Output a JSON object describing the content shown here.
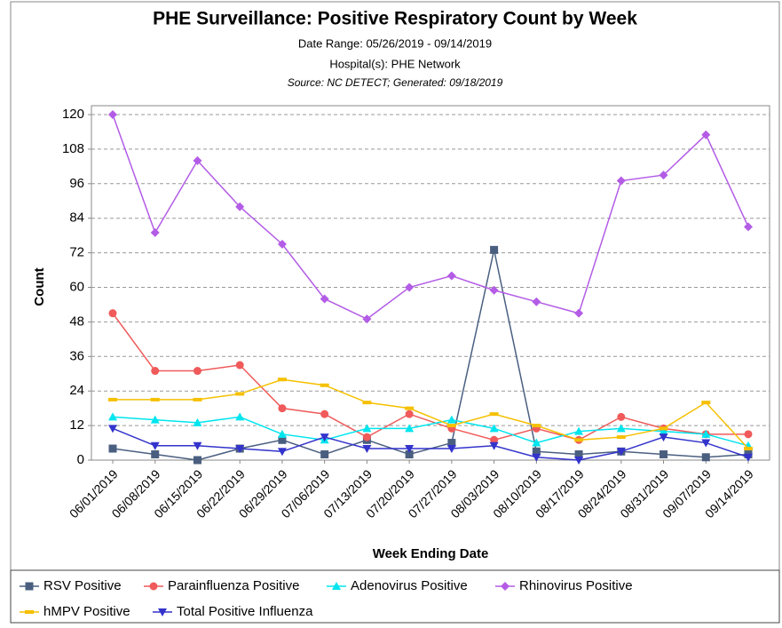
{
  "chart_data": {
    "type": "line",
    "title": "PHE Surveillance: Positive Respiratory Count by Week",
    "subtitle": "Date Range: 05/26/2019 - 09/14/2019",
    "subtitle2": "Hospital(s): PHE Network",
    "source": "Source: NC DETECT; Generated: 09/18/2019",
    "x_label": "Week Ending Date",
    "y_label": "Count",
    "categories": [
      "06/01/2019",
      "06/08/2019",
      "06/15/2019",
      "06/22/2019",
      "06/29/2019",
      "07/06/2019",
      "07/13/2019",
      "07/20/2019",
      "07/27/2019",
      "08/03/2019",
      "08/10/2019",
      "08/17/2019",
      "08/24/2019",
      "08/31/2019",
      "09/07/2019",
      "09/14/2019"
    ],
    "series": [
      {
        "name": "RSV Positive",
        "color": "#4a5f80",
        "marker": "square",
        "values": [
          4,
          2,
          0,
          4,
          7,
          2,
          7,
          2,
          6,
          73,
          3,
          2,
          3,
          2,
          1,
          2
        ]
      },
      {
        "name": "Parainfluenza Positive",
        "color": "#f05a5a",
        "marker": "circle",
        "values": [
          51,
          31,
          31,
          33,
          18,
          16,
          8,
          16,
          11,
          7,
          11,
          7,
          15,
          11,
          9,
          9
        ]
      },
      {
        "name": "Adenovirus Positive",
        "color": "#00e5ee",
        "marker": "triangle-up",
        "values": [
          15,
          14,
          13,
          15,
          9,
          7,
          11,
          11,
          14,
          11,
          6,
          10,
          11,
          10,
          9,
          5
        ]
      },
      {
        "name": "Rhinovirus Positive",
        "color": "#b35ce6",
        "marker": "diamond",
        "values": [
          120,
          79,
          104,
          88,
          75,
          56,
          49,
          60,
          64,
          59,
          55,
          51,
          97,
          99,
          113,
          81
        ]
      },
      {
        "name": "hMPV Positive",
        "color": "#f5c000",
        "marker": "dash",
        "values": [
          21,
          21,
          21,
          23,
          28,
          26,
          20,
          18,
          12,
          16,
          12,
          7,
          8,
          11,
          20,
          4
        ]
      },
      {
        "name": "Total Positive Influenza",
        "color": "#3333cc",
        "marker": "triangle-down",
        "values": [
          11,
          5,
          5,
          4,
          3,
          8,
          4,
          4,
          4,
          5,
          1,
          0,
          3,
          8,
          6,
          1
        ]
      }
    ],
    "ylim": [
      0,
      120
    ],
    "yticks": [
      0,
      12,
      24,
      36,
      48,
      60,
      72,
      84,
      96,
      108,
      120
    ],
    "grid": true
  }
}
